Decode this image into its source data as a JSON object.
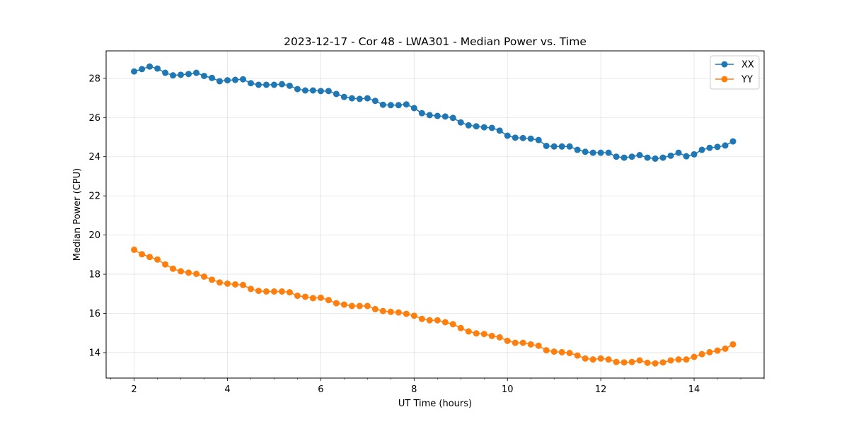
{
  "chart_data": {
    "type": "line",
    "title": "2023-12-17 - Cor 48 - LWA301 - Median Power vs. Time",
    "xlabel": "UT Time (hours)",
    "ylabel": "Median Power (CPU)",
    "xlim": [
      1.4,
      15.5
    ],
    "ylim": [
      12.7,
      29.4
    ],
    "xticks": [
      2,
      4,
      6,
      8,
      10,
      12,
      14
    ],
    "yticks": [
      14,
      16,
      18,
      20,
      22,
      24,
      26,
      28
    ],
    "grid": true,
    "legend_position": "top-right",
    "x": [
      2.0,
      2.167,
      2.333,
      2.5,
      2.667,
      2.833,
      3.0,
      3.167,
      3.333,
      3.5,
      3.667,
      3.833,
      4.0,
      4.167,
      4.333,
      4.5,
      4.667,
      4.833,
      5.0,
      5.167,
      5.333,
      5.5,
      5.667,
      5.833,
      6.0,
      6.167,
      6.333,
      6.5,
      6.667,
      6.833,
      7.0,
      7.167,
      7.333,
      7.5,
      7.667,
      7.833,
      8.0,
      8.167,
      8.333,
      8.5,
      8.667,
      8.833,
      9.0,
      9.167,
      9.333,
      9.5,
      9.667,
      9.833,
      10.0,
      10.167,
      10.333,
      10.5,
      10.667,
      10.833,
      11.0,
      11.167,
      11.333,
      11.5,
      11.667,
      11.833,
      12.0,
      12.167,
      12.333,
      12.5,
      12.667,
      12.833,
      13.0,
      13.167,
      13.333,
      13.5,
      13.667,
      13.833,
      14.0,
      14.167,
      14.333,
      14.5,
      14.667,
      14.833
    ],
    "series": [
      {
        "name": "XX",
        "color": "#1f77b4",
        "values": [
          28.35,
          28.47,
          28.6,
          28.5,
          28.28,
          28.15,
          28.18,
          28.22,
          28.28,
          28.12,
          28.02,
          27.85,
          27.9,
          27.92,
          27.95,
          27.75,
          27.67,
          27.67,
          27.67,
          27.7,
          27.62,
          27.45,
          27.38,
          27.38,
          27.35,
          27.35,
          27.2,
          27.05,
          26.98,
          26.95,
          26.98,
          26.85,
          26.65,
          26.63,
          26.63,
          26.67,
          26.48,
          26.22,
          26.12,
          26.08,
          26.05,
          25.98,
          25.75,
          25.6,
          25.55,
          25.5,
          25.47,
          25.33,
          25.07,
          24.97,
          24.95,
          24.92,
          24.85,
          24.55,
          24.52,
          24.52,
          24.52,
          24.35,
          24.25,
          24.2,
          24.2,
          24.2,
          24.0,
          23.95,
          24.0,
          24.08,
          23.95,
          23.9,
          23.95,
          24.05,
          24.2,
          24.02,
          24.12,
          24.35,
          24.45,
          24.5,
          24.57,
          24.78
        ]
      },
      {
        "name": "YY",
        "color": "#ff7f0e",
        "values": [
          19.25,
          19.02,
          18.88,
          18.75,
          18.5,
          18.28,
          18.15,
          18.08,
          18.02,
          17.88,
          17.72,
          17.58,
          17.52,
          17.48,
          17.45,
          17.25,
          17.15,
          17.12,
          17.12,
          17.12,
          17.08,
          16.9,
          16.85,
          16.78,
          16.8,
          16.68,
          16.52,
          16.45,
          16.38,
          16.38,
          16.38,
          16.22,
          16.12,
          16.08,
          16.05,
          15.98,
          15.88,
          15.72,
          15.65,
          15.65,
          15.55,
          15.45,
          15.25,
          15.08,
          14.98,
          14.95,
          14.85,
          14.78,
          14.6,
          14.5,
          14.5,
          14.42,
          14.35,
          14.12,
          14.05,
          14.02,
          13.98,
          13.85,
          13.7,
          13.65,
          13.7,
          13.65,
          13.52,
          13.5,
          13.52,
          13.6,
          13.48,
          13.45,
          13.5,
          13.6,
          13.65,
          13.65,
          13.78,
          13.92,
          14.02,
          14.1,
          14.2,
          14.42
        ]
      }
    ]
  }
}
